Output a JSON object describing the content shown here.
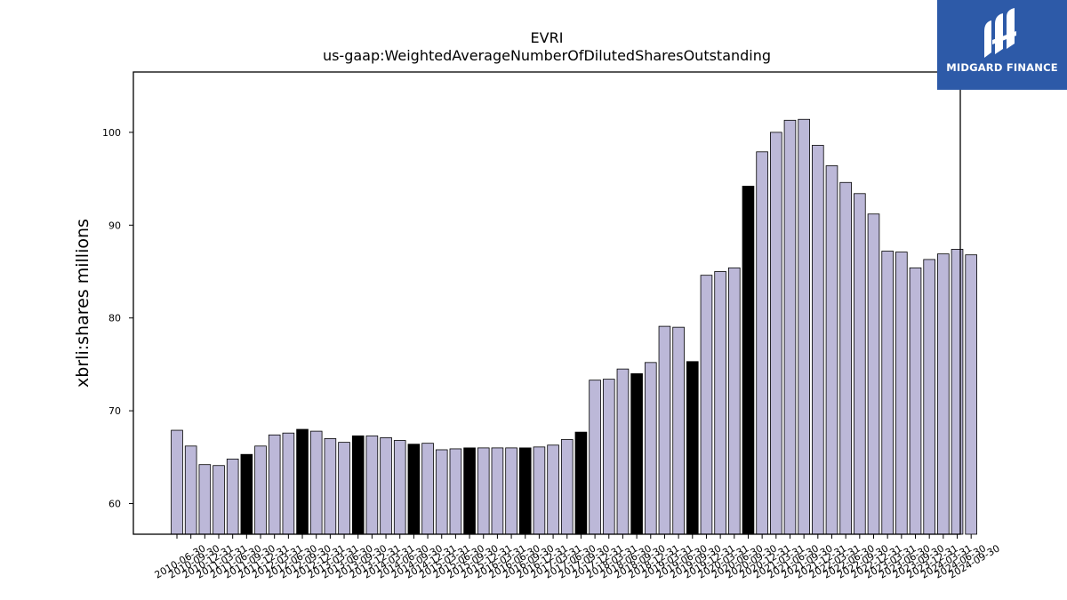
{
  "logo": {
    "name": "MIDGARD FINANCE",
    "icon": "midgard-logo-icon",
    "background": "#2d5aa8"
  },
  "chart_data": {
    "type": "bar",
    "title": "EVRI",
    "subtitle": "us-gaap:WeightedAverageNumberOfDilutedSharesOutstanding",
    "xlabel": "",
    "ylabel": "xbrli:shares millions",
    "ylim": [
      56.7,
      106.5
    ],
    "yticks": [
      60,
      70,
      80,
      90,
      100
    ],
    "grid": false,
    "legend": "none",
    "colors": {
      "regular": "#bcb8d8",
      "highlight": "#000000",
      "edge": "#000000"
    },
    "categories": [
      "2010-06-30",
      "2010-09-30",
      "2010-12-31",
      "2011-03-31",
      "2011-06-30",
      "2011-09-30",
      "2011-12-31",
      "2012-03-31",
      "2012-06-30",
      "2012-09-30",
      "2012-12-31",
      "2013-03-31",
      "2013-06-30",
      "2013-09-30",
      "2013-12-31",
      "2014-03-31",
      "2014-06-30",
      "2014-09-30",
      "2014-12-31",
      "2015-03-31",
      "2015-06-30",
      "2015-09-30",
      "2015-12-31",
      "2016-03-31",
      "2016-06-30",
      "2016-09-30",
      "2016-12-31",
      "2017-03-31",
      "2017-06-30",
      "2017-09-30",
      "2017-12-31",
      "2018-03-31",
      "2018-06-30",
      "2018-09-30",
      "2018-12-31",
      "2019-03-31",
      "2019-06-30",
      "2019-09-30",
      "2019-12-31",
      "2020-03-31",
      "2020-06-30",
      "2020-09-30",
      "2020-12-31",
      "2021-03-31",
      "2021-06-30",
      "2021-09-30",
      "2021-12-31",
      "2022-03-31",
      "2022-06-30",
      "2022-09-30",
      "2022-12-31",
      "2023-03-31",
      "2023-06-30",
      "2023-09-30",
      "2023-12-31",
      "2024-03-31",
      "2024-06-30",
      "2024-09-30"
    ],
    "values": [
      67.9,
      66.2,
      64.2,
      64.1,
      64.8,
      65.3,
      66.2,
      67.4,
      67.6,
      68.0,
      67.8,
      67.0,
      66.6,
      67.3,
      67.3,
      67.1,
      66.8,
      66.4,
      66.5,
      65.8,
      65.9,
      66.0,
      66.0,
      66.0,
      66.0,
      66.0,
      66.1,
      66.3,
      66.9,
      67.7,
      73.3,
      73.4,
      74.5,
      74.0,
      75.2,
      79.1,
      79.0,
      75.3,
      84.6,
      85.0,
      85.4,
      94.2,
      97.9,
      100.0,
      101.3,
      101.4,
      98.6,
      96.4,
      94.6,
      93.4,
      91.2,
      87.2,
      87.1,
      85.4,
      86.3,
      86.9,
      87.4,
      86.8
    ],
    "highlight": [
      5,
      9,
      13,
      17,
      21,
      25,
      29,
      33,
      37,
      41
    ]
  }
}
